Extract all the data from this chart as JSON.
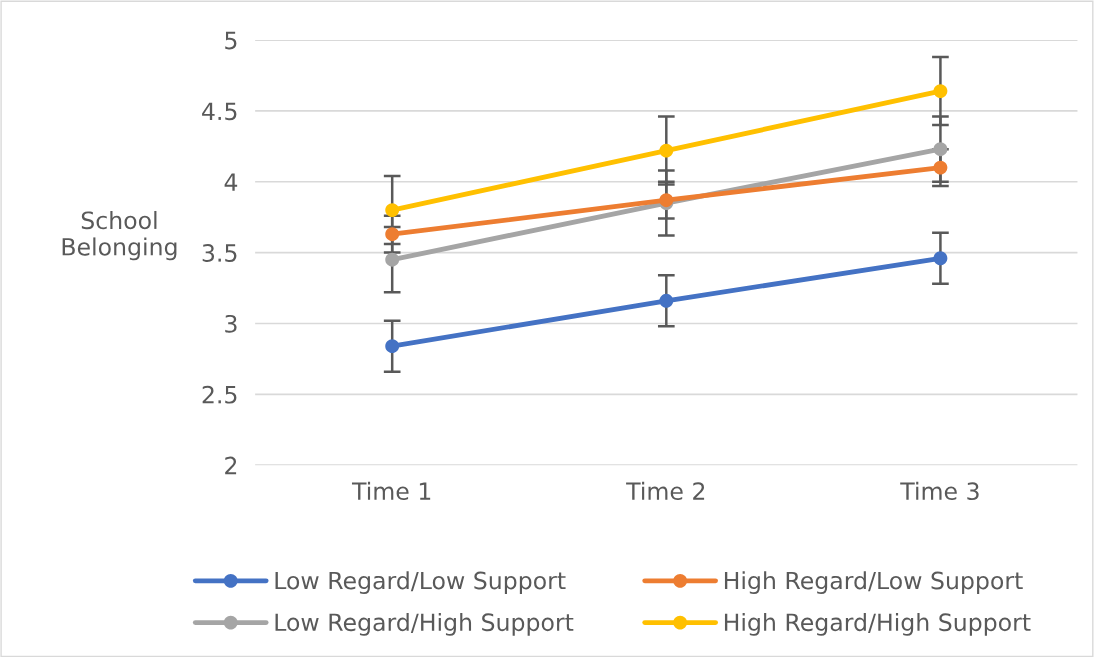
{
  "chart_data": {
    "type": "line",
    "ylabel": "School Belonging",
    "categories": [
      "Time 1",
      "Time 2",
      "Time 3"
    ],
    "series": [
      {
        "name": "Low Regard/Low Support",
        "color": "#4472c4",
        "values": [
          2.84,
          3.16,
          3.46
        ],
        "errors": [
          0.18,
          0.18,
          0.18
        ]
      },
      {
        "name": "High Regard/Low Support",
        "color": "#ed7d31",
        "values": [
          3.63,
          3.87,
          4.1
        ],
        "errors": [
          0.13,
          0.13,
          0.13
        ]
      },
      {
        "name": "Low Regard/High Support",
        "color": "#a5a5a5",
        "values": [
          3.45,
          3.85,
          4.23
        ],
        "errors": [
          0.23,
          0.23,
          0.23
        ]
      },
      {
        "name": "High Regard/High Support",
        "color": "#ffc000",
        "values": [
          3.8,
          4.22,
          4.64
        ],
        "errors": [
          0.24,
          0.24,
          0.24
        ]
      }
    ],
    "ylim": [
      2,
      5
    ],
    "yticks": [
      2,
      2.5,
      3,
      3.5,
      4,
      4.5,
      5
    ],
    "grid": "y",
    "legend": "bottom",
    "marker": "circle",
    "line_style": "solid"
  }
}
